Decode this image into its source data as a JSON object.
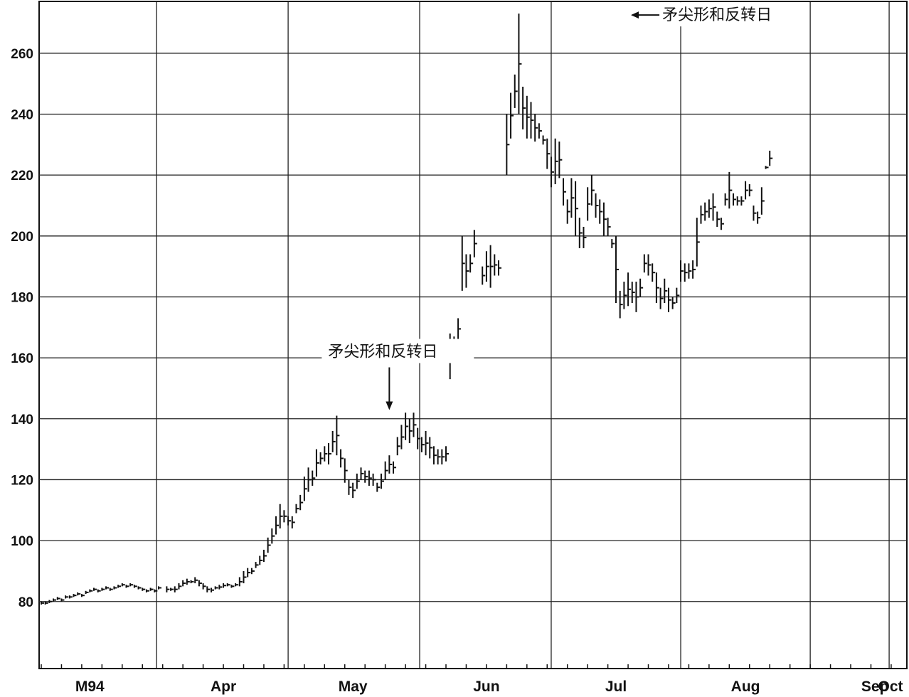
{
  "chart_data": {
    "type": "ohlc",
    "title": "",
    "xlabel": "",
    "ylabel": "",
    "ylim": [
      58,
      277
    ],
    "yticks": [
      80,
      100,
      120,
      140,
      160,
      180,
      200,
      220,
      240,
      260
    ],
    "xlim": [
      0,
      213
    ],
    "month_labels": [
      {
        "label": "M94",
        "x": 12
      },
      {
        "label": "Apr",
        "x": 45
      },
      {
        "label": "May",
        "x": 77
      },
      {
        "label": "Jun",
        "x": 110
      },
      {
        "label": "Jul",
        "x": 142
      },
      {
        "label": "Aug",
        "x": 174
      },
      {
        "label": "Sep",
        "x": 206
      },
      {
        "label": "Oct",
        "x": 213
      }
    ],
    "grid": true,
    "annotations": [
      {
        "text": "矛尖形和反转日",
        "target": [
          86,
          141
        ]
      },
      {
        "text": "矛尖形和反转日",
        "target": [
          145,
          273
        ]
      }
    ],
    "bars": [
      [
        0,
        80,
        79
      ],
      [
        1,
        80,
        79
      ],
      [
        2,
        80.5,
        79.5
      ],
      [
        3,
        81,
        80
      ],
      [
        4,
        81.5,
        80.5
      ],
      [
        5,
        81,
        80
      ],
      [
        6,
        82,
        81
      ],
      [
        7,
        82,
        81
      ],
      [
        8,
        82.5,
        81.5
      ],
      [
        9,
        83,
        82
      ],
      [
        10,
        82.5,
        81.5
      ],
      [
        11,
        83.5,
        82.5
      ],
      [
        12,
        84,
        83
      ],
      [
        13,
        84.5,
        83.5
      ],
      [
        14,
        84,
        83
      ],
      [
        15,
        84.5,
        83.5
      ],
      [
        16,
        85,
        84
      ],
      [
        17,
        84.5,
        83.5
      ],
      [
        18,
        85,
        84
      ],
      [
        19,
        85.5,
        84.5
      ],
      [
        20,
        86,
        85
      ],
      [
        21,
        85.5,
        84.5
      ],
      [
        22,
        86,
        85
      ],
      [
        23,
        85.5,
        84.5
      ],
      [
        24,
        85,
        84
      ],
      [
        25,
        84.5,
        83.5
      ],
      [
        26,
        84,
        83
      ],
      [
        27,
        84.5,
        83.5
      ],
      [
        28,
        84,
        83
      ],
      [
        29,
        85,
        84
      ],
      [
        31,
        85,
        83
      ],
      [
        32,
        84.5,
        83.5
      ],
      [
        33,
        85,
        83
      ],
      [
        34,
        86,
        84
      ],
      [
        35,
        87,
        85
      ],
      [
        36,
        87.5,
        85.5
      ],
      [
        37,
        87,
        86
      ],
      [
        38,
        88,
        86
      ],
      [
        39,
        87,
        85
      ],
      [
        40,
        86,
        84
      ],
      [
        41,
        85,
        83
      ],
      [
        42,
        84.5,
        83
      ],
      [
        43,
        85,
        84
      ],
      [
        44,
        85.5,
        84
      ],
      [
        45,
        86,
        84.5
      ],
      [
        46,
        86,
        85
      ],
      [
        47,
        85.5,
        84.5
      ],
      [
        48,
        86,
        85
      ],
      [
        49,
        88,
        85
      ],
      [
        50,
        90,
        86
      ],
      [
        51,
        91,
        88
      ],
      [
        52,
        91,
        89
      ],
      [
        53,
        93,
        91
      ],
      [
        54,
        95,
        92
      ],
      [
        55,
        97,
        93
      ],
      [
        56,
        101,
        96
      ],
      [
        57,
        104,
        99
      ],
      [
        58,
        108,
        102
      ],
      [
        59,
        112,
        104
      ],
      [
        60,
        110,
        106
      ],
      [
        61,
        108,
        105
      ],
      [
        62,
        108,
        104
      ],
      [
        63,
        112,
        109
      ],
      [
        64,
        115,
        110
      ],
      [
        65,
        121,
        113
      ],
      [
        66,
        124,
        116
      ],
      [
        67,
        123,
        118
      ],
      [
        68,
        130,
        121
      ],
      [
        69,
        129,
        125
      ],
      [
        70,
        131,
        126
      ],
      [
        71,
        132,
        125
      ],
      [
        72,
        136,
        129
      ],
      [
        73,
        141,
        128
      ],
      [
        74,
        130,
        124
      ],
      [
        75,
        127,
        119
      ],
      [
        76,
        120,
        115
      ],
      [
        77,
        119,
        114
      ],
      [
        78,
        122,
        117
      ],
      [
        79,
        124,
        120
      ],
      [
        80,
        123,
        119
      ],
      [
        81,
        123,
        118
      ],
      [
        82,
        122,
        118
      ],
      [
        83,
        119,
        116
      ],
      [
        84,
        122,
        117
      ],
      [
        85,
        126,
        120
      ],
      [
        86,
        128,
        122
      ],
      [
        87,
        126,
        122
      ],
      [
        88,
        134,
        128
      ],
      [
        89,
        138,
        130
      ],
      [
        90,
        142,
        133
      ],
      [
        91,
        140,
        132
      ],
      [
        92,
        142,
        134
      ],
      [
        93,
        137,
        130
      ],
      [
        94,
        134,
        129
      ],
      [
        95,
        136,
        128
      ],
      [
        96,
        134,
        127
      ],
      [
        97,
        131,
        125
      ],
      [
        98,
        130,
        125
      ],
      [
        99,
        130,
        125
      ],
      [
        100,
        131,
        126
      ],
      [
        101,
        168,
        153
      ],
      [
        102,
        167,
        160
      ],
      [
        103,
        173,
        166
      ],
      [
        104,
        200,
        182
      ],
      [
        105,
        194,
        183
      ],
      [
        106,
        194,
        188
      ],
      [
        107,
        202,
        193
      ],
      [
        109,
        190,
        184
      ],
      [
        110,
        195,
        185
      ],
      [
        111,
        197,
        183
      ],
      [
        112,
        194,
        187
      ],
      [
        113,
        192,
        187
      ],
      [
        115,
        240,
        220
      ],
      [
        116,
        247,
        232
      ],
      [
        117,
        253,
        242
      ],
      [
        118,
        273,
        240
      ],
      [
        119,
        249,
        235
      ],
      [
        120,
        246,
        232
      ],
      [
        121,
        244,
        232
      ],
      [
        122,
        240,
        231
      ],
      [
        123,
        237,
        232
      ],
      [
        124,
        233,
        230
      ],
      [
        125,
        232,
        222
      ],
      [
        126,
        226,
        216
      ],
      [
        127,
        232,
        217
      ],
      [
        128,
        231,
        219
      ],
      [
        129,
        219,
        210
      ],
      [
        130,
        212,
        204
      ],
      [
        131,
        219,
        206
      ],
      [
        132,
        218,
        200
      ],
      [
        133,
        206,
        196
      ],
      [
        134,
        203,
        196
      ],
      [
        135,
        216,
        205
      ],
      [
        136,
        220,
        210
      ],
      [
        137,
        214,
        206
      ],
      [
        138,
        212,
        204
      ],
      [
        139,
        211,
        200
      ],
      [
        140,
        206,
        200
      ],
      [
        141,
        199,
        196
      ],
      [
        142,
        200,
        178
      ],
      [
        143,
        182,
        173
      ],
      [
        144,
        185,
        176
      ],
      [
        145,
        188,
        177
      ],
      [
        146,
        185,
        178
      ],
      [
        147,
        185,
        175
      ],
      [
        148,
        186,
        180
      ],
      [
        149,
        194,
        188
      ],
      [
        150,
        194,
        187
      ],
      [
        151,
        191,
        185
      ],
      [
        152,
        188,
        178
      ],
      [
        153,
        183,
        176
      ],
      [
        154,
        186,
        178
      ],
      [
        155,
        183,
        175
      ],
      [
        156,
        180,
        176
      ],
      [
        157,
        183,
        178
      ],
      [
        158,
        192,
        185
      ],
      [
        159,
        191,
        185
      ],
      [
        160,
        191,
        186
      ],
      [
        161,
        192,
        186
      ],
      [
        162,
        206,
        190
      ],
      [
        163,
        210,
        204
      ],
      [
        164,
        211,
        205
      ],
      [
        165,
        212,
        206
      ],
      [
        166,
        214,
        205
      ],
      [
        167,
        208,
        203
      ],
      [
        168,
        206,
        202
      ],
      [
        169,
        214,
        210
      ],
      [
        170,
        221,
        209
      ],
      [
        171,
        214,
        210
      ],
      [
        172,
        213,
        210
      ],
      [
        173,
        213,
        210
      ],
      [
        174,
        218,
        212
      ],
      [
        175,
        217,
        213
      ],
      [
        176,
        210,
        205
      ],
      [
        177,
        208,
        204
      ],
      [
        178,
        216,
        207
      ],
      [
        179,
        223,
        222
      ],
      [
        180,
        228,
        223
      ]
    ]
  }
}
